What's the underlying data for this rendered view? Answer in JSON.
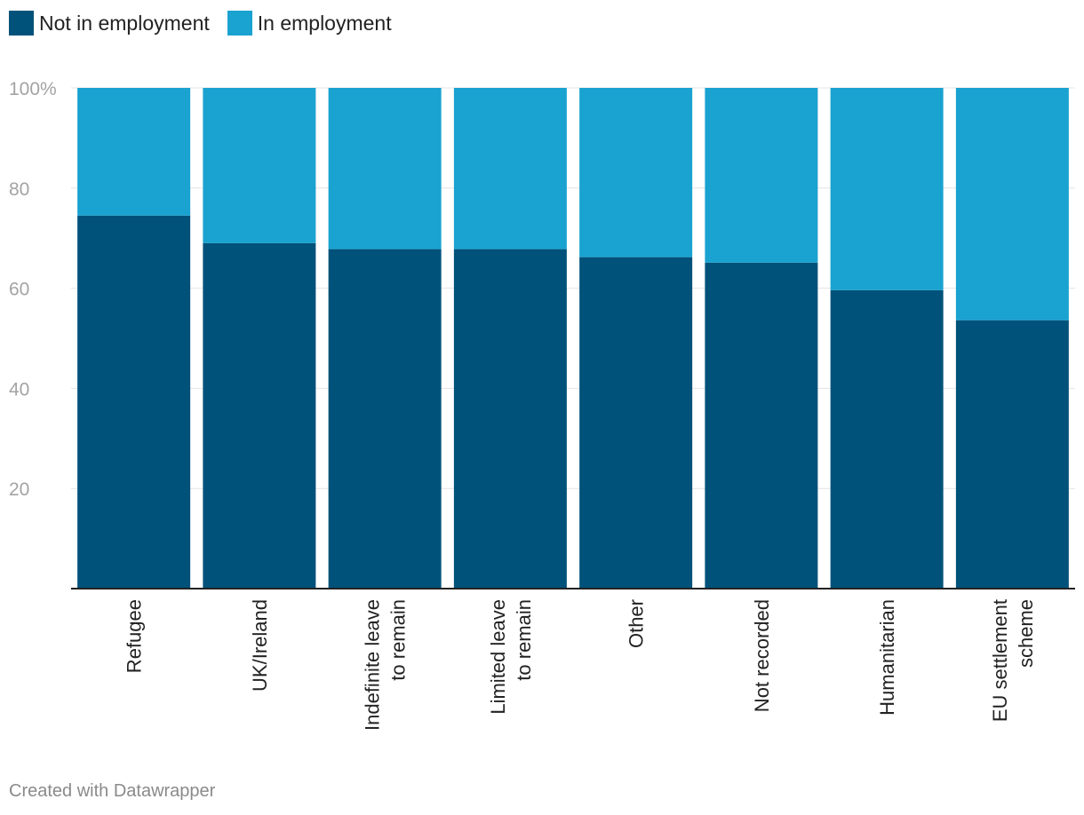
{
  "legend": [
    {
      "label": "Not in employment",
      "color": "#00527a"
    },
    {
      "label": "In employment",
      "color": "#1aa2d0"
    }
  ],
  "chart_data": {
    "type": "bar",
    "stacked": true,
    "orientation": "vertical",
    "categories": [
      [
        "Refugee"
      ],
      [
        "UK/Ireland"
      ],
      [
        "Indefinite leave",
        "to remain"
      ],
      [
        "Limited leave",
        "to remain"
      ],
      [
        "Other"
      ],
      [
        "Not recorded"
      ],
      [
        "Humanitarian"
      ],
      [
        "EU settlement",
        "scheme"
      ]
    ],
    "series": [
      {
        "name": "Not in employment",
        "color": "#00527a",
        "values": [
          74.5,
          69,
          67.8,
          67.8,
          66.2,
          65.1,
          59.6,
          53.6
        ]
      },
      {
        "name": "In employment",
        "color": "#1aa2d0",
        "values": [
          25.5,
          31,
          32.2,
          32.2,
          33.8,
          34.9,
          40.4,
          46.4
        ]
      }
    ],
    "ylim": [
      0,
      100
    ],
    "yticks": [
      {
        "value": 100,
        "label": "100%"
      },
      {
        "value": 80,
        "label": "80"
      },
      {
        "value": 60,
        "label": "60"
      },
      {
        "value": 40,
        "label": "40"
      },
      {
        "value": 20,
        "label": "20"
      }
    ],
    "grid": true,
    "legend_position": "top-left"
  },
  "footer": "Created with Datawrapper"
}
